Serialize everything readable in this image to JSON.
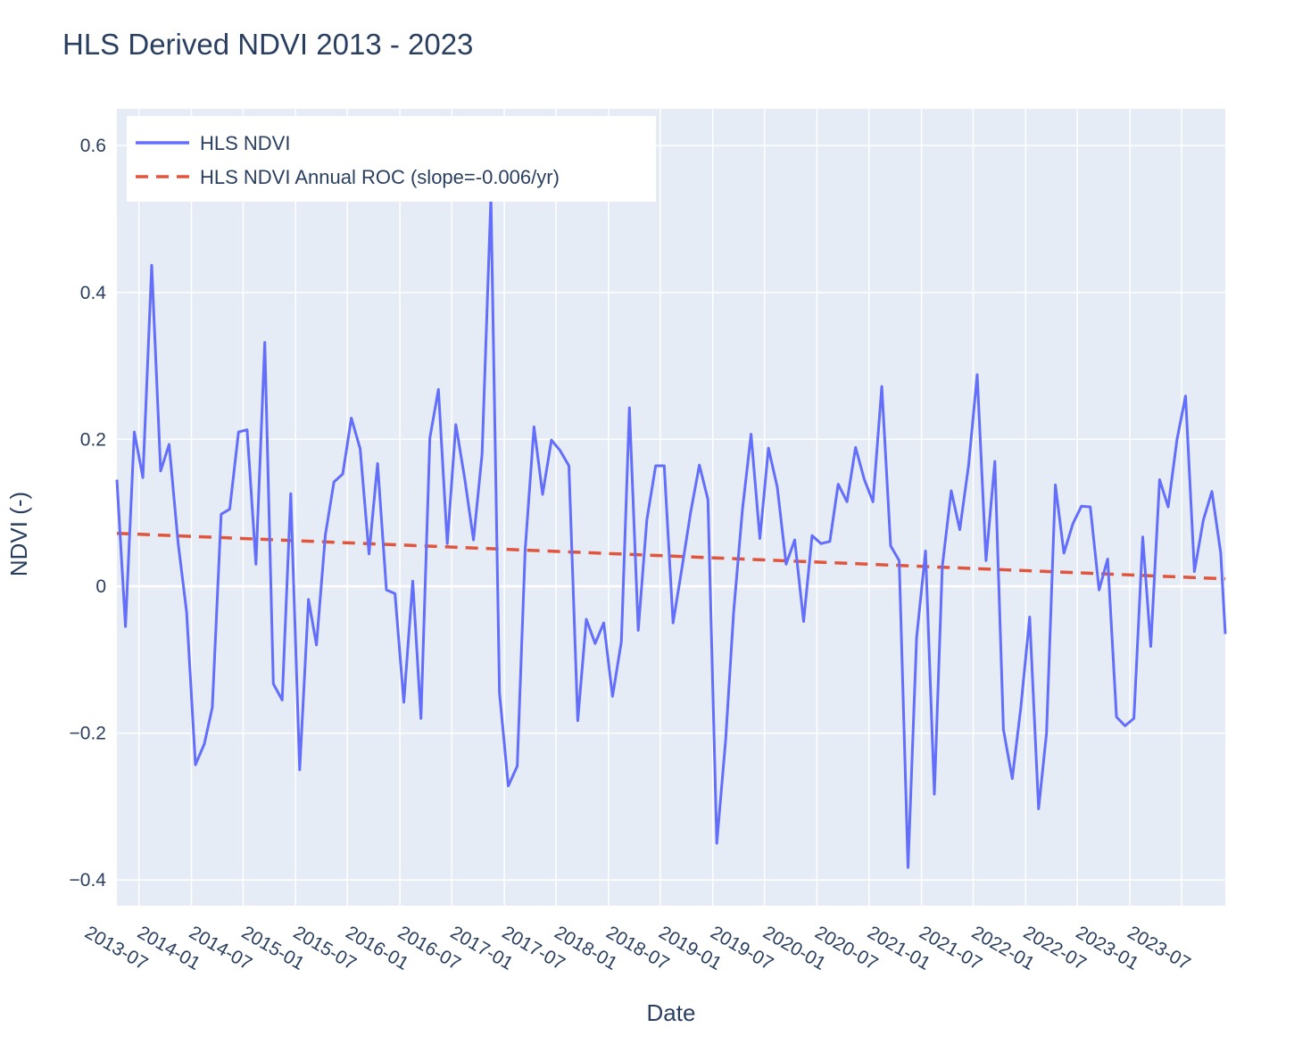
{
  "chart_data": {
    "type": "line",
    "title": "HLS Derived NDVI 2013 - 2023",
    "xlabel": "Date",
    "ylabel": "NDVI (-)",
    "xlim": [
      "2013-04-15",
      "2023-12-01"
    ],
    "ylim": [
      -0.435,
      0.65
    ],
    "grid": true,
    "legend_position": "top-left",
    "colors": {
      "plot_bg": "#e5ecf6",
      "grid": "#ffffff",
      "text": "#2a3f5f"
    },
    "y_ticks": [
      {
        "value": 0.6,
        "label": "0.6"
      },
      {
        "value": 0.4,
        "label": "0.4"
      },
      {
        "value": 0.2,
        "label": "0.2"
      },
      {
        "value": 0,
        "label": "0"
      },
      {
        "value": -0.2,
        "label": "−0.2"
      },
      {
        "value": -0.4,
        "label": "−0.4"
      }
    ],
    "x_ticks": [
      "2013-07",
      "2014-01",
      "2014-07",
      "2015-01",
      "2015-07",
      "2016-01",
      "2016-07",
      "2017-01",
      "2017-07",
      "2018-01",
      "2018-07",
      "2019-01",
      "2019-07",
      "2020-01",
      "2020-07",
      "2021-01",
      "2021-07",
      "2022-01",
      "2022-07",
      "2023-01",
      "2023-07"
    ],
    "series": [
      {
        "name": "HLS NDVI",
        "style": "solid",
        "color": "#636efa",
        "points": [
          [
            "2013-04-15",
            0.145
          ],
          [
            "2013-05-15",
            -0.055
          ],
          [
            "2013-06-15",
            0.21
          ],
          [
            "2013-07-15",
            0.148
          ],
          [
            "2013-08-15",
            0.437
          ],
          [
            "2013-09-15",
            0.157
          ],
          [
            "2013-10-15",
            0.193
          ],
          [
            "2013-11-15",
            0.06
          ],
          [
            "2013-12-15",
            -0.035
          ],
          [
            "2014-01-15",
            -0.243
          ],
          [
            "2014-02-15",
            -0.215
          ],
          [
            "2014-03-15",
            -0.165
          ],
          [
            "2014-04-15",
            0.098
          ],
          [
            "2014-05-15",
            0.105
          ],
          [
            "2014-06-15",
            0.21
          ],
          [
            "2014-07-15",
            0.213
          ],
          [
            "2014-08-15",
            0.03
          ],
          [
            "2014-09-15",
            0.332
          ],
          [
            "2014-10-15",
            -0.133
          ],
          [
            "2014-11-15",
            -0.155
          ],
          [
            "2014-12-15",
            0.126
          ],
          [
            "2015-01-15",
            -0.25
          ],
          [
            "2015-02-15",
            -0.018
          ],
          [
            "2015-03-15",
            -0.08
          ],
          [
            "2015-04-15",
            0.07
          ],
          [
            "2015-05-15",
            0.142
          ],
          [
            "2015-06-15",
            0.153
          ],
          [
            "2015-07-15",
            0.229
          ],
          [
            "2015-08-15",
            0.187
          ],
          [
            "2015-09-15",
            0.044
          ],
          [
            "2015-10-15",
            0.167
          ],
          [
            "2015-11-15",
            -0.005
          ],
          [
            "2015-12-15",
            -0.01
          ],
          [
            "2016-01-15",
            -0.158
          ],
          [
            "2016-02-15",
            0.007
          ],
          [
            "2016-03-15",
            -0.18
          ],
          [
            "2016-04-15",
            0.202
          ],
          [
            "2016-05-15",
            0.268
          ],
          [
            "2016-06-15",
            0.058
          ],
          [
            "2016-07-15",
            0.22
          ],
          [
            "2016-08-15",
            0.147
          ],
          [
            "2016-09-15",
            0.063
          ],
          [
            "2016-10-15",
            0.18
          ],
          [
            "2016-11-15",
            0.53
          ],
          [
            "2016-12-15",
            -0.145
          ],
          [
            "2017-01-15",
            -0.272
          ],
          [
            "2017-02-15",
            -0.245
          ],
          [
            "2017-03-15",
            0.05
          ],
          [
            "2017-04-15",
            0.217
          ],
          [
            "2017-05-15",
            0.125
          ],
          [
            "2017-06-15",
            0.199
          ],
          [
            "2017-07-15",
            0.185
          ],
          [
            "2017-08-15",
            0.164
          ],
          [
            "2017-09-15",
            -0.183
          ],
          [
            "2017-10-15",
            -0.045
          ],
          [
            "2017-11-15",
            -0.078
          ],
          [
            "2017-12-15",
            -0.05
          ],
          [
            "2018-01-15",
            -0.15
          ],
          [
            "2018-02-15",
            -0.075
          ],
          [
            "2018-03-15",
            0.243
          ],
          [
            "2018-04-15",
            -0.06
          ],
          [
            "2018-05-15",
            0.09
          ],
          [
            "2018-06-15",
            0.164
          ],
          [
            "2018-07-15",
            0.164
          ],
          [
            "2018-08-15",
            -0.05
          ],
          [
            "2018-09-15",
            0.025
          ],
          [
            "2018-10-15",
            0.1
          ],
          [
            "2018-11-15",
            0.165
          ],
          [
            "2018-12-15",
            0.118
          ],
          [
            "2019-01-15",
            -0.35
          ],
          [
            "2019-02-15",
            -0.21
          ],
          [
            "2019-03-15",
            -0.035
          ],
          [
            "2019-04-15",
            0.105
          ],
          [
            "2019-05-15",
            0.207
          ],
          [
            "2019-06-15",
            0.065
          ],
          [
            "2019-07-15",
            0.188
          ],
          [
            "2019-08-15",
            0.135
          ],
          [
            "2019-09-15",
            0.03
          ],
          [
            "2019-10-15",
            0.063
          ],
          [
            "2019-11-15",
            -0.048
          ],
          [
            "2019-12-15",
            0.069
          ],
          [
            "2020-01-15",
            0.058
          ],
          [
            "2020-02-15",
            0.061
          ],
          [
            "2020-03-15",
            0.139
          ],
          [
            "2020-04-15",
            0.115
          ],
          [
            "2020-05-15",
            0.189
          ],
          [
            "2020-06-15",
            0.145
          ],
          [
            "2020-07-15",
            0.115
          ],
          [
            "2020-08-15",
            0.272
          ],
          [
            "2020-09-15",
            0.055
          ],
          [
            "2020-10-15",
            0.035
          ],
          [
            "2020-11-15",
            -0.383
          ],
          [
            "2020-12-15",
            -0.07
          ],
          [
            "2021-01-15",
            0.048
          ],
          [
            "2021-02-15",
            -0.283
          ],
          [
            "2021-03-15",
            0.027
          ],
          [
            "2021-04-15",
            0.13
          ],
          [
            "2021-05-15",
            0.077
          ],
          [
            "2021-06-15",
            0.165
          ],
          [
            "2021-07-15",
            0.288
          ],
          [
            "2021-08-15",
            0.035
          ],
          [
            "2021-09-15",
            0.17
          ],
          [
            "2021-10-15",
            -0.195
          ],
          [
            "2021-11-15",
            -0.262
          ],
          [
            "2021-12-15",
            -0.165
          ],
          [
            "2022-01-15",
            -0.042
          ],
          [
            "2022-02-15",
            -0.303
          ],
          [
            "2022-03-15",
            -0.2
          ],
          [
            "2022-04-15",
            0.138
          ],
          [
            "2022-05-15",
            0.045
          ],
          [
            "2022-06-15",
            0.085
          ],
          [
            "2022-07-15",
            0.109
          ],
          [
            "2022-08-15",
            0.108
          ],
          [
            "2022-09-15",
            -0.005
          ],
          [
            "2022-10-15",
            0.037
          ],
          [
            "2022-11-15",
            -0.178
          ],
          [
            "2022-12-15",
            -0.19
          ],
          [
            "2023-01-15",
            -0.18
          ],
          [
            "2023-02-15",
            0.067
          ],
          [
            "2023-03-15",
            -0.082
          ],
          [
            "2023-04-15",
            0.145
          ],
          [
            "2023-05-15",
            0.108
          ],
          [
            "2023-06-15",
            0.2
          ],
          [
            "2023-07-15",
            0.259
          ],
          [
            "2023-08-15",
            0.02
          ],
          [
            "2023-09-15",
            0.09
          ],
          [
            "2023-10-15",
            0.129
          ],
          [
            "2023-11-15",
            0.045
          ],
          [
            "2023-12-01",
            -0.065
          ]
        ]
      },
      {
        "name": "HLS NDVI Annual ROC (slope=-0.006/yr)",
        "style": "dashed",
        "color": "#e0553d",
        "points": [
          [
            "2013-04-15",
            0.072
          ],
          [
            "2023-12-01",
            0.01
          ]
        ]
      }
    ]
  }
}
